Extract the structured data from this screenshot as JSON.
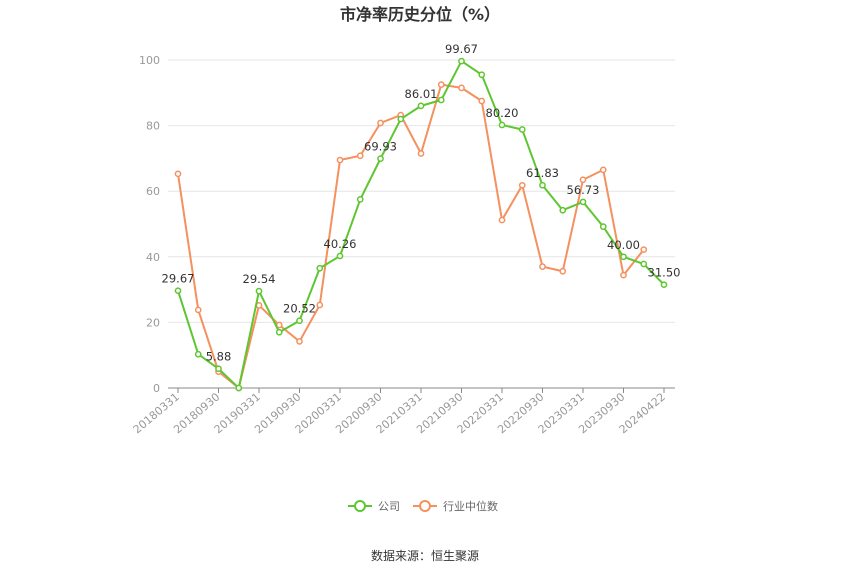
{
  "chart_data": {
    "type": "line",
    "title": "市净率历史分位（%）",
    "source": "数据来源：恒生聚源",
    "ylim": [
      0,
      100
    ],
    "yticks": [
      0,
      20,
      40,
      60,
      80,
      100
    ],
    "grid": true,
    "legend_position": "bottom",
    "x": [
      "20180331",
      "20180630",
      "20180930",
      "20181231",
      "20190331",
      "20190630",
      "20190930",
      "20191231",
      "20200331",
      "20200630",
      "20200930",
      "20201231",
      "20210331",
      "20210630",
      "20210930",
      "20211231",
      "20220331",
      "20220630",
      "20220930",
      "20221231",
      "20230331",
      "20230630",
      "20230930",
      "20231231",
      "20240422"
    ],
    "x_tick_labels": [
      "20180331",
      "20180930",
      "20190331",
      "20190930",
      "20200331",
      "20200930",
      "20210331",
      "20210930",
      "20220331",
      "20220930",
      "20230331",
      "20230930",
      "20240422"
    ],
    "series": [
      {
        "name": "公司",
        "color": "#5ec630",
        "values": [
          29.67,
          10.3,
          5.88,
          0,
          29.54,
          17.0,
          20.52,
          36.5,
          40.26,
          57.5,
          69.93,
          82.0,
          86.01,
          87.8,
          99.67,
          95.5,
          80.2,
          78.8,
          61.83,
          54.2,
          56.73,
          49.2,
          40.0,
          37.8,
          31.5
        ],
        "data_labels": [
          {
            "index": 0,
            "text": "29.67"
          },
          {
            "index": 2,
            "text": "5.88"
          },
          {
            "index": 4,
            "text": "29.54"
          },
          {
            "index": 6,
            "text": "20.52"
          },
          {
            "index": 8,
            "text": "40.26"
          },
          {
            "index": 10,
            "text": "69.93"
          },
          {
            "index": 12,
            "text": "86.01"
          },
          {
            "index": 14,
            "text": "99.67"
          },
          {
            "index": 16,
            "text": "80.20"
          },
          {
            "index": 18,
            "text": "61.83"
          },
          {
            "index": 20,
            "text": "56.73"
          },
          {
            "index": 22,
            "text": "40.00"
          },
          {
            "index": 24,
            "text": "31.50"
          }
        ]
      },
      {
        "name": "行业中位数",
        "color": "#f5905f",
        "values": [
          65.3,
          23.8,
          5.0,
          0,
          25.2,
          19.2,
          14.2,
          25.3,
          69.5,
          70.8,
          80.8,
          83.2,
          71.5,
          92.5,
          91.5,
          87.5,
          51.2,
          61.8,
          37.0,
          35.6,
          63.5,
          66.5,
          34.4,
          42.2,
          null
        ]
      }
    ]
  }
}
